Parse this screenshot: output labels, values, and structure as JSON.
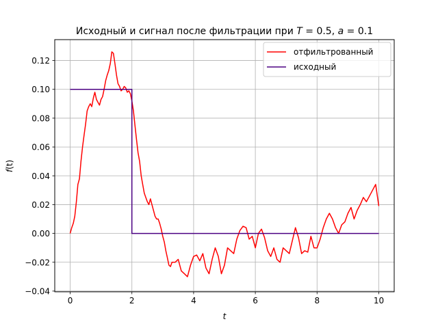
{
  "chart_data": {
    "type": "line",
    "title": "Исходный и сигнал после фильтрации при T = 0.5, a = 0.1",
    "title_parts": {
      "prefix": "Исходный и сигнал после фильтрации при ",
      "T_symbol": "T",
      "T_value": " = 0.5, ",
      "a_symbol": "a",
      "a_value": " = 0.1"
    },
    "xlabel": "t",
    "ylabel_func": "f",
    "ylabel_arg": "(t)",
    "xlim": [
      -0.5,
      10.5
    ],
    "ylim": [
      -0.0405,
      0.1345
    ],
    "xticks": [
      0,
      2,
      4,
      6,
      8,
      10
    ],
    "xtick_labels": [
      "0",
      "2",
      "4",
      "6",
      "8",
      "10"
    ],
    "yticks": [
      -0.04,
      -0.02,
      0.0,
      0.02,
      0.04,
      0.06,
      0.08,
      0.1,
      0.12
    ],
    "ytick_labels": [
      "−0.04",
      "−0.02",
      "0.00",
      "0.02",
      "0.04",
      "0.06",
      "0.08",
      "0.10",
      "0.12"
    ],
    "grid": true,
    "legend_position": "top-right",
    "series": [
      {
        "name": "отфильтрованный",
        "color": "#ff0000",
        "x": [
          0.0,
          0.05,
          0.1,
          0.15,
          0.2,
          0.25,
          0.3,
          0.35,
          0.4,
          0.45,
          0.5,
          0.55,
          0.6,
          0.65,
          0.7,
          0.75,
          0.8,
          0.85,
          0.9,
          0.95,
          1.0,
          1.05,
          1.1,
          1.15,
          1.2,
          1.25,
          1.3,
          1.35,
          1.4,
          1.45,
          1.5,
          1.55,
          1.6,
          1.65,
          1.7,
          1.75,
          1.8,
          1.85,
          1.9,
          1.95,
          2.0,
          2.05,
          2.1,
          2.15,
          2.2,
          2.25,
          2.3,
          2.35,
          2.4,
          2.45,
          2.5,
          2.55,
          2.6,
          2.65,
          2.7,
          2.75,
          2.8,
          2.85,
          2.9,
          2.95,
          3.0,
          3.05,
          3.1,
          3.15,
          3.2,
          3.25,
          3.3,
          3.4,
          3.5,
          3.6,
          3.7,
          3.8,
          3.9,
          4.0,
          4.1,
          4.2,
          4.3,
          4.4,
          4.5,
          4.6,
          4.7,
          4.8,
          4.9,
          5.0,
          5.1,
          5.2,
          5.3,
          5.4,
          5.5,
          5.6,
          5.7,
          5.8,
          5.9,
          6.0,
          6.1,
          6.2,
          6.3,
          6.4,
          6.5,
          6.6,
          6.7,
          6.8,
          6.9,
          7.0,
          7.1,
          7.2,
          7.3,
          7.4,
          7.5,
          7.6,
          7.7,
          7.8,
          7.9,
          8.0,
          8.1,
          8.2,
          8.3,
          8.4,
          8.5,
          8.6,
          8.7,
          8.8,
          8.9,
          9.0,
          9.1,
          9.2,
          9.3,
          9.4,
          9.5,
          9.6,
          9.7,
          9.8,
          9.9,
          10.0
        ],
        "y": [
          0.0,
          0.004,
          0.007,
          0.012,
          0.022,
          0.034,
          0.038,
          0.05,
          0.06,
          0.068,
          0.076,
          0.085,
          0.088,
          0.09,
          0.088,
          0.094,
          0.098,
          0.093,
          0.091,
          0.089,
          0.093,
          0.095,
          0.1,
          0.106,
          0.11,
          0.113,
          0.118,
          0.126,
          0.125,
          0.118,
          0.11,
          0.104,
          0.102,
          0.099,
          0.1,
          0.102,
          0.101,
          0.098,
          0.099,
          0.097,
          0.092,
          0.085,
          0.075,
          0.065,
          0.056,
          0.05,
          0.04,
          0.034,
          0.028,
          0.025,
          0.022,
          0.02,
          0.024,
          0.02,
          0.016,
          0.012,
          0.01,
          0.01,
          0.007,
          0.003,
          -0.002,
          -0.006,
          -0.012,
          -0.017,
          -0.022,
          -0.023,
          -0.02,
          -0.02,
          -0.018,
          -0.026,
          -0.028,
          -0.03,
          -0.022,
          -0.016,
          -0.015,
          -0.019,
          -0.014,
          -0.024,
          -0.028,
          -0.018,
          -0.01,
          -0.016,
          -0.028,
          -0.022,
          -0.01,
          -0.012,
          -0.014,
          -0.004,
          0.002,
          0.005,
          0.004,
          -0.004,
          -0.002,
          -0.01,
          0.0,
          0.003,
          -0.003,
          -0.012,
          -0.016,
          -0.01,
          -0.018,
          -0.02,
          -0.01,
          -0.012,
          -0.014,
          -0.005,
          0.004,
          -0.003,
          -0.014,
          -0.012,
          -0.013,
          -0.002,
          -0.01,
          -0.01,
          -0.004,
          0.004,
          0.01,
          0.014,
          0.01,
          0.004,
          0.0,
          0.006,
          0.008,
          0.014,
          0.018,
          0.01,
          0.016,
          0.02,
          0.025,
          0.022,
          0.026,
          0.03,
          0.034,
          0.019
        ]
      },
      {
        "name": "исходный",
        "color": "#4b0082",
        "x": [
          0,
          2,
          2,
          10
        ],
        "y": [
          0.1,
          0.1,
          0.0,
          0.0
        ]
      }
    ]
  }
}
